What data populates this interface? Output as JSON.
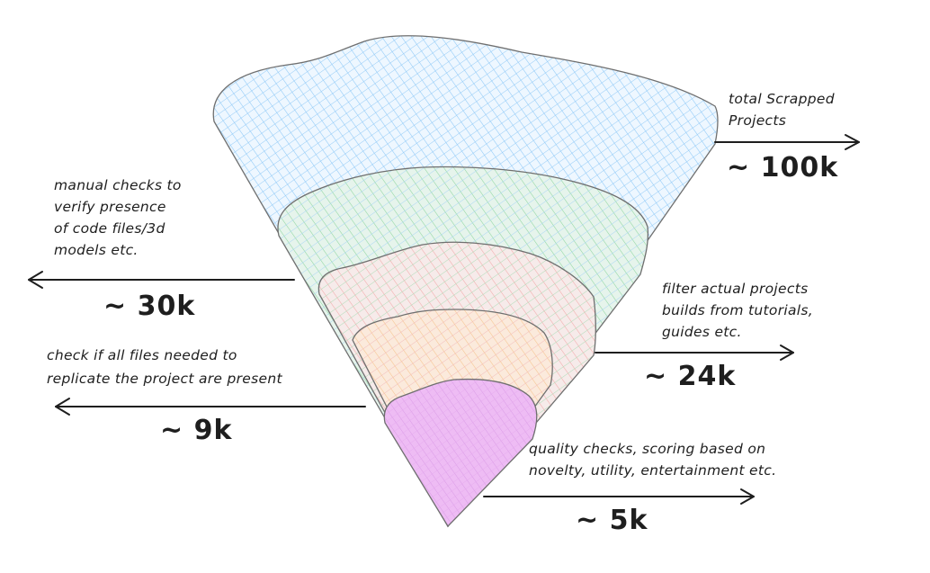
{
  "stages": [
    {
      "id": "total",
      "label_lines": [
        "total Scrapped",
        "Projects"
      ],
      "count": "~ 100k",
      "fill": "#a5d8ff"
    },
    {
      "id": "manual",
      "label_lines": [
        "manual checks to",
        "verify presence",
        "of code files/3d",
        "models etc."
      ],
      "count": "~ 30k",
      "fill": "#b2f2bb"
    },
    {
      "id": "filter",
      "label_lines": [
        "filter actual projects",
        "builds from tutorials,",
        "guides etc."
      ],
      "count": "~ 24k",
      "fill": "#ffc9c9"
    },
    {
      "id": "check",
      "label_lines": [
        "check if all files needed to",
        "replicate the project are present"
      ],
      "count": "~ 9k",
      "fill": "#ffd8a8"
    },
    {
      "id": "quality",
      "label_lines": [
        "quality checks, scoring based on",
        "novelty, utility, entertainment etc."
      ],
      "count": "~ 5k",
      "fill": "#eebefa"
    }
  ]
}
